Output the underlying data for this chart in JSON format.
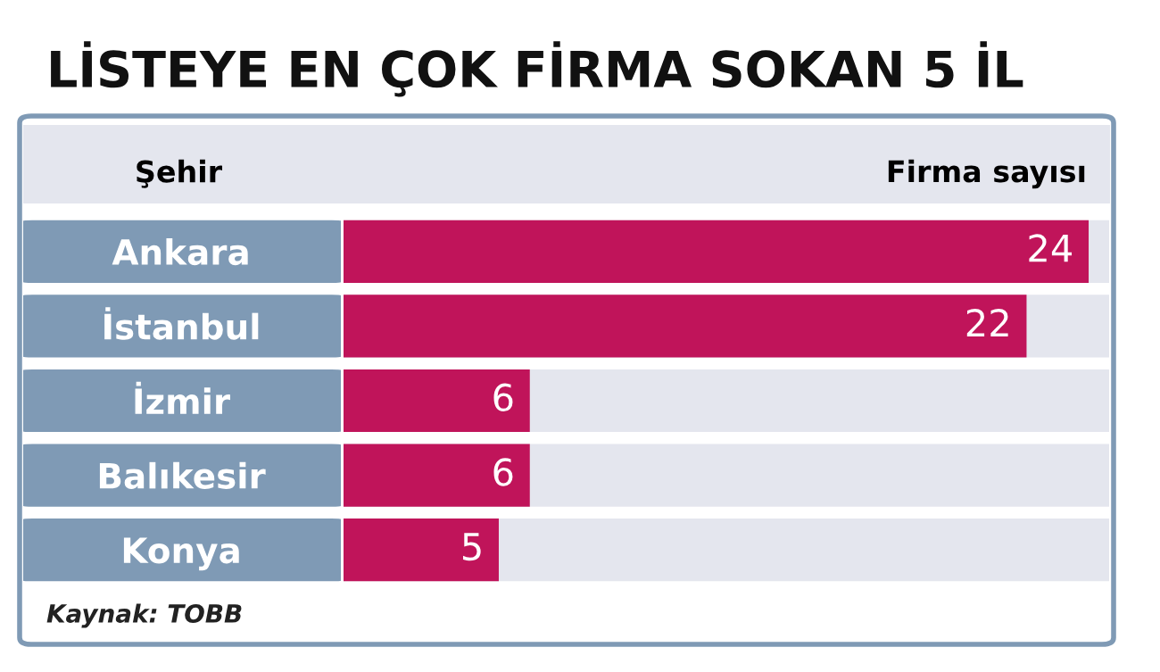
{
  "chart_data": {
    "type": "bar",
    "orientation": "horizontal",
    "title": "LİSTEYE EN ÇOK FİRMA SOKAN 5 İL",
    "ylabel": "Şehir",
    "xlabel": "Firma sayısı",
    "categories": [
      "Ankara",
      "İstanbul",
      "İzmir",
      "Balıkesir",
      "Konya"
    ],
    "values": [
      24,
      22,
      6,
      6,
      5
    ],
    "color": "#c0145a",
    "xlim": [
      0,
      24.66
    ],
    "tick_labels": "y",
    "data_labels": true,
    "grid": false,
    "legend": false,
    "annotations": [
      "Kaynak: TOBB"
    ]
  }
}
